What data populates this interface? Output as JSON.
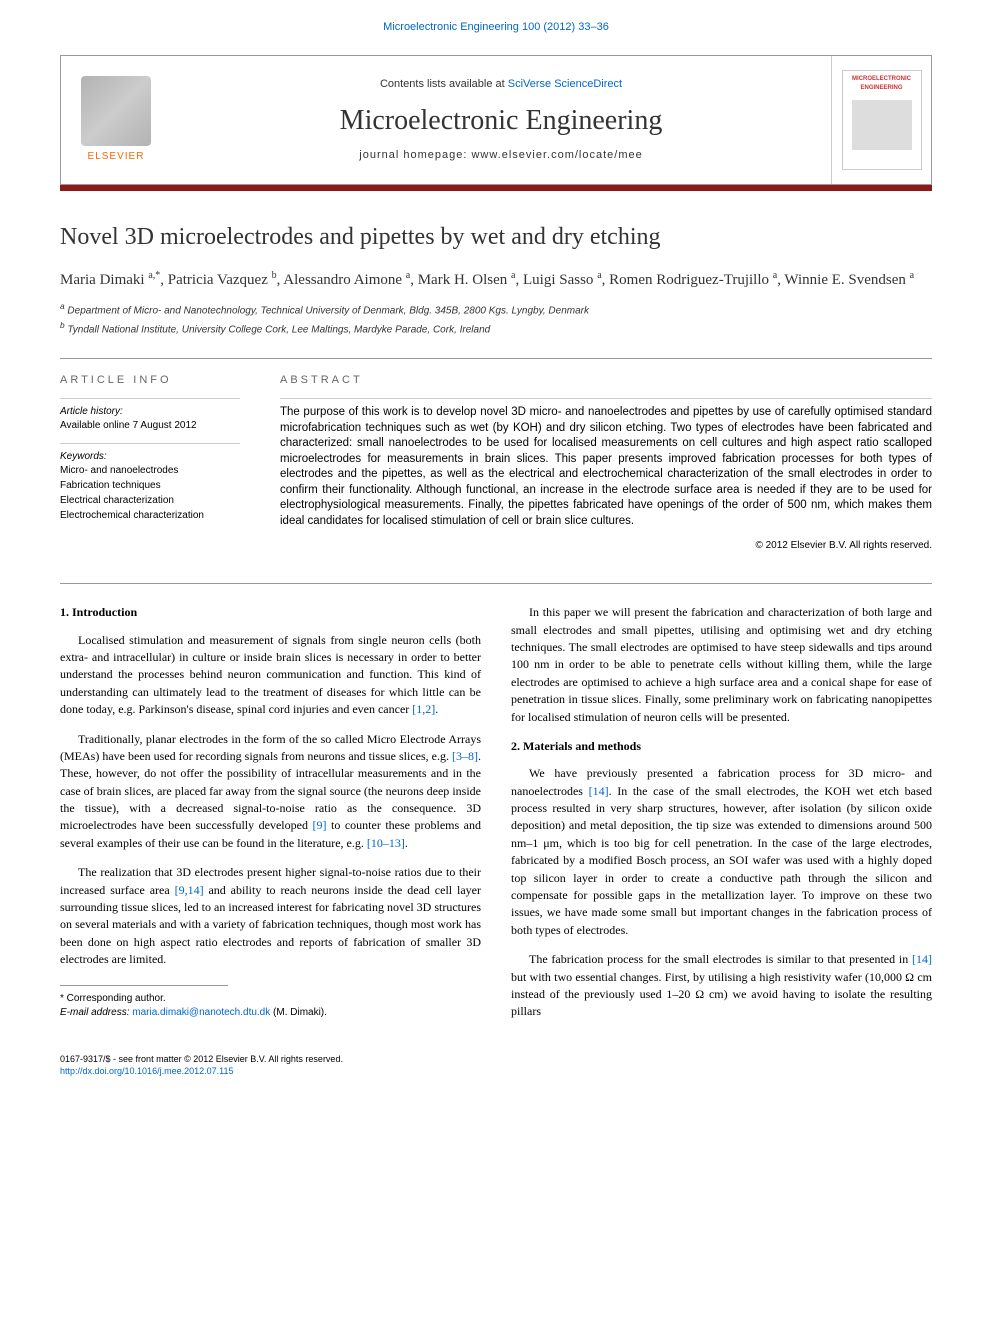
{
  "journal_link_top": "Microelectronic Engineering 100 (2012) 33–36",
  "header": {
    "contents_prefix": "Contents lists available at ",
    "contents_link": "SciVerse ScienceDirect",
    "journal_name": "Microelectronic Engineering",
    "homepage_label": "journal homepage: www.elsevier.com/locate/mee",
    "elsevier_label": "ELSEVIER",
    "cover_title": "MICROELECTRONIC ENGINEERING"
  },
  "article": {
    "title": "Novel 3D microelectrodes and pipettes by wet and dry etching",
    "authors_html": "Maria Dimaki <sup>a,*</sup>, Patricia Vazquez <sup>b</sup>, Alessandro Aimone <sup>a</sup>, Mark H. Olsen <sup>a</sup>, Luigi Sasso <sup>a</sup>, Romen Rodriguez-Trujillo <sup>a</sup>, Winnie E. Svendsen <sup>a</sup>",
    "affiliations": [
      "a Department of Micro- and Nanotechnology, Technical University of Denmark, Bldg. 345B, 2800 Kgs. Lyngby, Denmark",
      "b Tyndall National Institute, University College Cork, Lee Maltings, Mardyke Parade, Cork, Ireland"
    ]
  },
  "info": {
    "header": "ARTICLE INFO",
    "history_label": "Article history:",
    "history_value": "Available online 7 August 2012",
    "keywords_label": "Keywords:",
    "keywords": [
      "Micro- and nanoelectrodes",
      "Fabrication techniques",
      "Electrical characterization",
      "Electrochemical characterization"
    ]
  },
  "abstract": {
    "header": "ABSTRACT",
    "text": "The purpose of this work is to develop novel 3D micro- and nanoelectrodes and pipettes by use of carefully optimised standard microfabrication techniques such as wet (by KOH) and dry silicon etching. Two types of electrodes have been fabricated and characterized: small nanoelectrodes to be used for localised measurements on cell cultures and high aspect ratio scalloped microelectrodes for measurements in brain slices. This paper presents improved fabrication processes for both types of electrodes and the pipettes, as well as the electrical and electrochemical characterization of the small electrodes in order to confirm their functionality. Although functional, an increase in the electrode surface area is needed if they are to be used for electrophysiological measurements. Finally, the pipettes fabricated have openings of the order of 500 nm, which makes them ideal candidates for localised stimulation of cell or brain slice cultures.",
    "copyright": "© 2012 Elsevier B.V. All rights reserved."
  },
  "body": {
    "intro_heading": "1. Introduction",
    "intro_p1": "Localised stimulation and measurement of signals from single neuron cells (both extra- and intracellular) in culture or inside brain slices is necessary in order to better understand the processes behind neuron communication and function. This kind of understanding can ultimately lead to the treatment of diseases for which little can be done today, e.g. Parkinson's disease, spinal cord injuries and even cancer ",
    "intro_p1_ref": "[1,2]",
    "intro_p2a": "Traditionally, planar electrodes in the form of the so called Micro Electrode Arrays (MEAs) have been used for recording signals from neurons and tissue slices, e.g. ",
    "intro_p2_ref1": "[3–8]",
    "intro_p2b": ". These, however, do not offer the possibility of intracellular measurements and in the case of brain slices, are placed far away from the signal source (the neurons deep inside the tissue), with a decreased signal-to-noise ratio as the consequence. 3D microelectrodes have been successfully developed ",
    "intro_p2_ref2": "[9]",
    "intro_p2c": " to counter these problems and several examples of their use can be found in the literature, e.g. ",
    "intro_p2_ref3": "[10–13]",
    "intro_p3a": "The realization that 3D electrodes present higher signal-to-noise ratios due to their increased surface area ",
    "intro_p3_ref1": "[9,14]",
    "intro_p3b": " and ability to reach neurons inside the dead cell layer surrounding tissue slices, led to an increased interest for fabricating novel 3D structures on several materials and with a variety of fabrication techniques, though most work has been done on high aspect ratio electrodes and reports of fabrication of smaller 3D electrodes are limited.",
    "col2_p1": "In this paper we will present the fabrication and characterization of both large and small electrodes and small pipettes, utilising and optimising wet and dry etching techniques. The small electrodes are optimised to have steep sidewalls and tips around 100 nm in order to be able to penetrate cells without killing them, while the large electrodes are optimised to achieve a high surface area and a conical shape for ease of penetration in tissue slices. Finally, some preliminary work on fabricating nanopipettes for localised stimulation of neuron cells will be presented.",
    "methods_heading": "2. Materials and methods",
    "methods_p1a": "We have previously presented a fabrication process for 3D micro- and nanoelectrodes ",
    "methods_p1_ref1": "[14]",
    "methods_p1b": ". In the case of the small electrodes, the KOH wet etch based process resulted in very sharp structures, however, after isolation (by silicon oxide deposition) and metal deposition, the tip size was extended to dimensions around 500 nm–1 μm, which is too big for cell penetration. In the case of the large electrodes, fabricated by a modified Bosch process, an SOI wafer was used with a highly doped top silicon layer in order to create a conductive path through the silicon and compensate for possible gaps in the metallization layer. To improve on these two issues, we have made some small but important changes in the fabrication process of both types of electrodes.",
    "methods_p2a": "The fabrication process for the small electrodes is similar to that presented in ",
    "methods_p2_ref1": "[14]",
    "methods_p2b": " but with two essential changes. First, by utilising a high resistivity wafer (10,000 Ω cm instead of the previously used 1–20 Ω cm) we avoid having to isolate the resulting pillars"
  },
  "footnote": {
    "corresponding": "* Corresponding author.",
    "email_label": "E-mail address: ",
    "email": "maria.dimaki@nanotech.dtu.dk",
    "email_suffix": " (M. Dimaki)."
  },
  "bottom": {
    "issn_line": "0167-9317/$ - see front matter © 2012 Elsevier B.V. All rights reserved.",
    "doi": "http://dx.doi.org/10.1016/j.mee.2012.07.115"
  },
  "colors": {
    "link": "#0066cc",
    "red_bar": "#8b1a1a",
    "elsevier_orange": "#ff6600",
    "cover_red": "#cc3333"
  }
}
